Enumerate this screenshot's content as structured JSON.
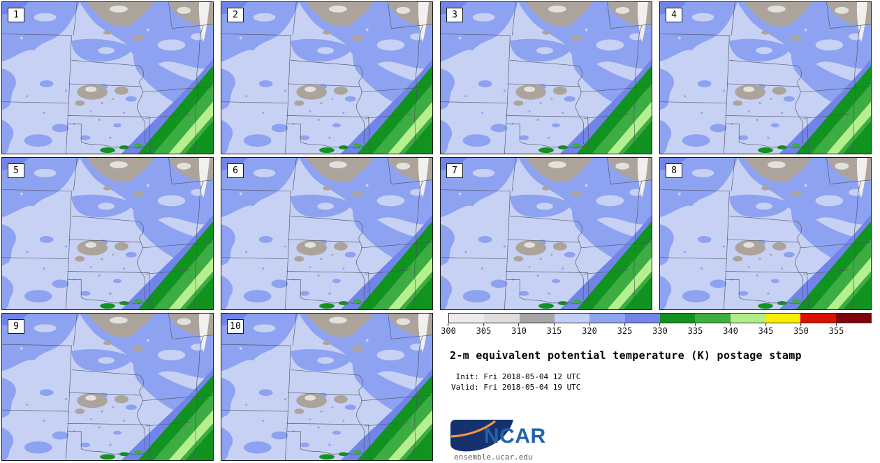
{
  "panels": {
    "labels": [
      "1",
      "2",
      "3",
      "4",
      "5",
      "6",
      "7",
      "8",
      "9",
      "10"
    ]
  },
  "colorbar": {
    "tick_labels": [
      "300",
      "305",
      "310",
      "315",
      "320",
      "325",
      "330",
      "335",
      "340",
      "345",
      "350",
      "355"
    ],
    "segment_colors": [
      "#ececec",
      "#dedede",
      "#a6a6a6",
      "#c3cff7",
      "#8ea6f0",
      "#7186e9",
      "#12921f",
      "#3fae43",
      "#b2ed89",
      "#f8ee00",
      "#da1000",
      "#7e040a"
    ]
  },
  "info": {
    "title": "2-m equivalent potential temperature (K) postage stamp",
    "init_line": " Init: Fri 2018-05-04 12 UTC",
    "valid_line": "Valid: Fri 2018-05-04 19 UTC",
    "logo_text": "NCAR",
    "site_url": "ensemble.ucar.edu"
  },
  "map_colors": {
    "base": "#c7d1f4",
    "mid": "#8da2f0",
    "dark": "#7185e9",
    "gray": "#aca49b",
    "lgray": "#e2e1de",
    "white": "#f1f0ee",
    "green1": "#11931f",
    "green2": "#3dac42",
    "green3": "#b6ef8e",
    "border": "#4b5263",
    "logo_navy": "#15326e",
    "logo_orange": "#f29440"
  }
}
